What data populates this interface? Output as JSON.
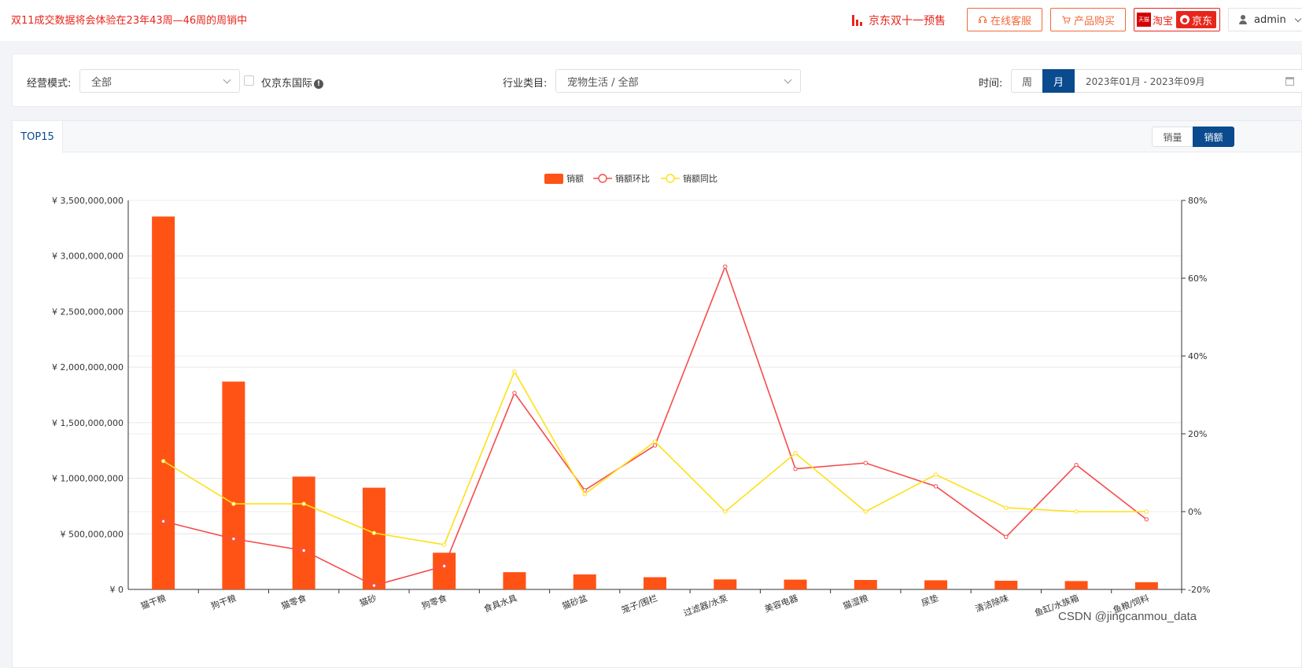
{
  "header": {
    "notice": "双11成交数据将会体验在23年43周—46周的周销中",
    "presale_label": "京东双十一预售",
    "service_label": "在线客服",
    "buy_label": "产品购买",
    "tmall_badge": "天猫",
    "taobao_label": "淘宝",
    "jd_label": "京东",
    "user_name": "admin"
  },
  "filters": {
    "mode_label": "经营模式:",
    "mode_value": "全部",
    "jd_intl_label": "仅京东国际",
    "industry_label": "行业类目:",
    "industry_value": "宠物生活 / 全部",
    "time_label": "时间:",
    "period_week": "周",
    "period_month": "月",
    "date_range": "2023年01月 - 2023年09月"
  },
  "card": {
    "tab_label": "TOP15",
    "toggle_volume": "销量",
    "toggle_sales": "销额"
  },
  "colors": {
    "bar": "#ff5316",
    "mom_line": "#f74b4b",
    "yoy_line": "#ffe016",
    "accent": "#0a4a8f"
  },
  "chart_data": {
    "type": "bar",
    "legend": [
      "销额",
      "销额环比",
      "销额同比"
    ],
    "categories": [
      "猫干粮",
      "狗干粮",
      "猫零食",
      "猫砂",
      "狗零食",
      "食具水具",
      "猫砂盆",
      "笼子/围栏",
      "过滤器/水泵",
      "美容电器",
      "猫湿粮",
      "尿垫",
      "清洁除味",
      "鱼缸/水族箱",
      "鱼粮/饲料"
    ],
    "series": [
      {
        "name": "销额",
        "type": "bar",
        "axis": "left",
        "values": [
          3355000000,
          1870000000,
          1015000000,
          915000000,
          330000000,
          155000000,
          135000000,
          110000000,
          90000000,
          88000000,
          85000000,
          82000000,
          78000000,
          75000000,
          65000000
        ]
      },
      {
        "name": "销额环比",
        "type": "line",
        "axis": "right",
        "values": [
          -2.5,
          -7,
          -10,
          -19,
          -14,
          30.5,
          5.5,
          17,
          63,
          11,
          12.5,
          6.5,
          -6.5,
          12,
          -2
        ]
      },
      {
        "name": "销额同比",
        "type": "line",
        "axis": "right",
        "values": [
          13,
          2,
          2,
          -5.5,
          -8.5,
          36,
          4.5,
          18,
          0,
          15,
          0,
          9.5,
          1,
          0,
          0
        ]
      }
    ],
    "y_left": {
      "min": 0,
      "max": 3500000000,
      "ticks": [
        "¥ 0",
        "¥ 500,000,000",
        "¥ 1,000,000,000",
        "¥ 1,500,000,000",
        "¥ 2,000,000,000",
        "¥ 2,500,000,000",
        "¥ 3,000,000,000",
        "¥ 3,500,000,000"
      ]
    },
    "y_right": {
      "min": -20,
      "max": 80,
      "ticks": [
        "-20%",
        "0%",
        "20%",
        "40%",
        "60%",
        "80%"
      ]
    },
    "grid": true,
    "legend_position": "top-center"
  },
  "watermark": "CSDN @jingcanmou_data"
}
